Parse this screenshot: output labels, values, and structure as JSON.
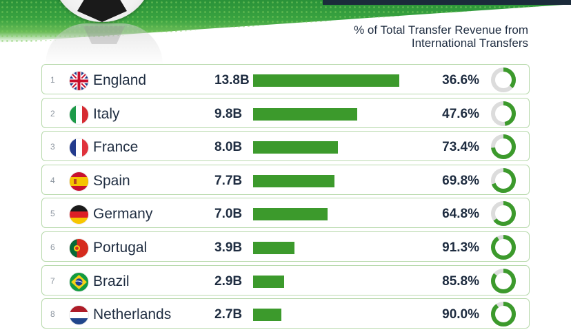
{
  "header": {
    "column_title_line1": "% of Total Transfer Revenue from",
    "column_title_line2": "International Transfers"
  },
  "colors": {
    "accent_green": "#3c9a2c",
    "donut_track": "#dcdcdc",
    "row_border": "#b7d9ab",
    "text_dark": "#1e2c40"
  },
  "chart_data": {
    "type": "bar",
    "categories": [
      "England",
      "Italy",
      "France",
      "Spain",
      "Germany",
      "Portugal",
      "Brazil",
      "Netherlands"
    ],
    "series": [
      {
        "values": [
          13.8,
          9.8,
          8.0,
          7.7,
          7.0,
          3.9,
          2.9,
          2.7
        ]
      },
      {
        "values": [
          36.6,
          47.6,
          73.4,
          69.8,
          64.8,
          91.3,
          85.8,
          90.0
        ]
      }
    ],
    "xlabel": "",
    "ylabel": "",
    "xlim": [
      0,
      13.8
    ],
    "rows": [
      {
        "rank": "1",
        "country": "England",
        "flag_icon": "england-flag-icon",
        "value_label": "13.8B",
        "value": 13.8,
        "pct_label": "36.6%",
        "pct": 36.6
      },
      {
        "rank": "2",
        "country": "Italy",
        "flag_icon": "italy-flag-icon",
        "value_label": "9.8B",
        "value": 9.8,
        "pct_label": "47.6%",
        "pct": 47.6
      },
      {
        "rank": "3",
        "country": "France",
        "flag_icon": "france-flag-icon",
        "value_label": "8.0B",
        "value": 8.0,
        "pct_label": "73.4%",
        "pct": 73.4
      },
      {
        "rank": "4",
        "country": "Spain",
        "flag_icon": "spain-flag-icon",
        "value_label": "7.7B",
        "value": 7.7,
        "pct_label": "69.8%",
        "pct": 69.8
      },
      {
        "rank": "5",
        "country": "Germany",
        "flag_icon": "germany-flag-icon",
        "value_label": "7.0B",
        "value": 7.0,
        "pct_label": "64.8%",
        "pct": 64.8
      },
      {
        "rank": "6",
        "country": "Portugal",
        "flag_icon": "portugal-flag-icon",
        "value_label": "3.9B",
        "value": 3.9,
        "pct_label": "91.3%",
        "pct": 91.3
      },
      {
        "rank": "7",
        "country": "Brazil",
        "flag_icon": "brazil-flag-icon",
        "value_label": "2.9B",
        "value": 2.9,
        "pct_label": "85.8%",
        "pct": 85.8
      },
      {
        "rank": "8",
        "country": "Netherlands",
        "flag_icon": "netherlands-flag-icon",
        "value_label": "2.7B",
        "value": 2.7,
        "pct_label": "90.0%",
        "pct": 90.0
      }
    ]
  }
}
